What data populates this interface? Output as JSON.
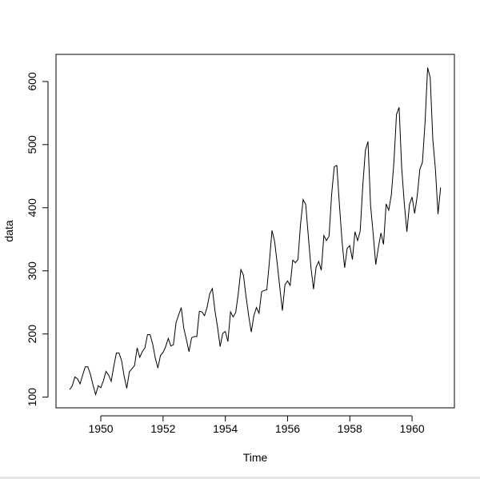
{
  "chart_data": {
    "type": "line",
    "title": "",
    "xlabel": "Time",
    "ylabel": "data",
    "xlim": [
      1948.56,
      1961.36
    ],
    "ylim": [
      83.04,
      642.96
    ],
    "x_ticks": [
      1950,
      1952,
      1954,
      1956,
      1958,
      1960
    ],
    "x_tick_labels": [
      "1950",
      "1952",
      "1954",
      "1956",
      "1958",
      "1960"
    ],
    "y_ticks": [
      100,
      200,
      300,
      400,
      500,
      600
    ],
    "y_tick_labels": [
      "100",
      "200",
      "300",
      "400",
      "500",
      "600"
    ],
    "grid": false,
    "line_color": "#000000",
    "series": [
      {
        "x_start": 1949.0,
        "x_step": 0.0833333,
        "values": [
          112,
          118,
          132,
          129,
          121,
          135,
          148,
          148,
          136,
          119,
          104,
          118,
          115,
          126,
          141,
          135,
          125,
          149,
          170,
          170,
          158,
          133,
          114,
          140,
          145,
          150,
          178,
          163,
          172,
          178,
          199,
          199,
          184,
          162,
          146,
          166,
          171,
          180,
          193,
          181,
          183,
          218,
          230,
          242,
          209,
          191,
          172,
          194,
          196,
          196,
          236,
          235,
          229,
          243,
          264,
          272,
          237,
          211,
          180,
          201,
          204,
          188,
          235,
          227,
          234,
          264,
          302,
          293,
          259,
          229,
          203,
          229,
          242,
          233,
          267,
          269,
          270,
          315,
          364,
          347,
          312,
          274,
          237,
          278,
          284,
          277,
          317,
          313,
          318,
          374,
          413,
          405,
          355,
          306,
          271,
          306,
          315,
          301,
          356,
          348,
          355,
          422,
          465,
          467,
          404,
          347,
          305,
          336,
          340,
          318,
          362,
          348,
          363,
          435,
          491,
          505,
          404,
          359,
          310,
          337,
          360,
          342,
          406,
          396,
          420,
          472,
          548,
          559,
          463,
          407,
          362,
          405,
          417,
          391,
          419,
          461,
          472,
          535,
          622,
          606,
          508,
          461,
          390,
          432
        ]
      }
    ]
  }
}
